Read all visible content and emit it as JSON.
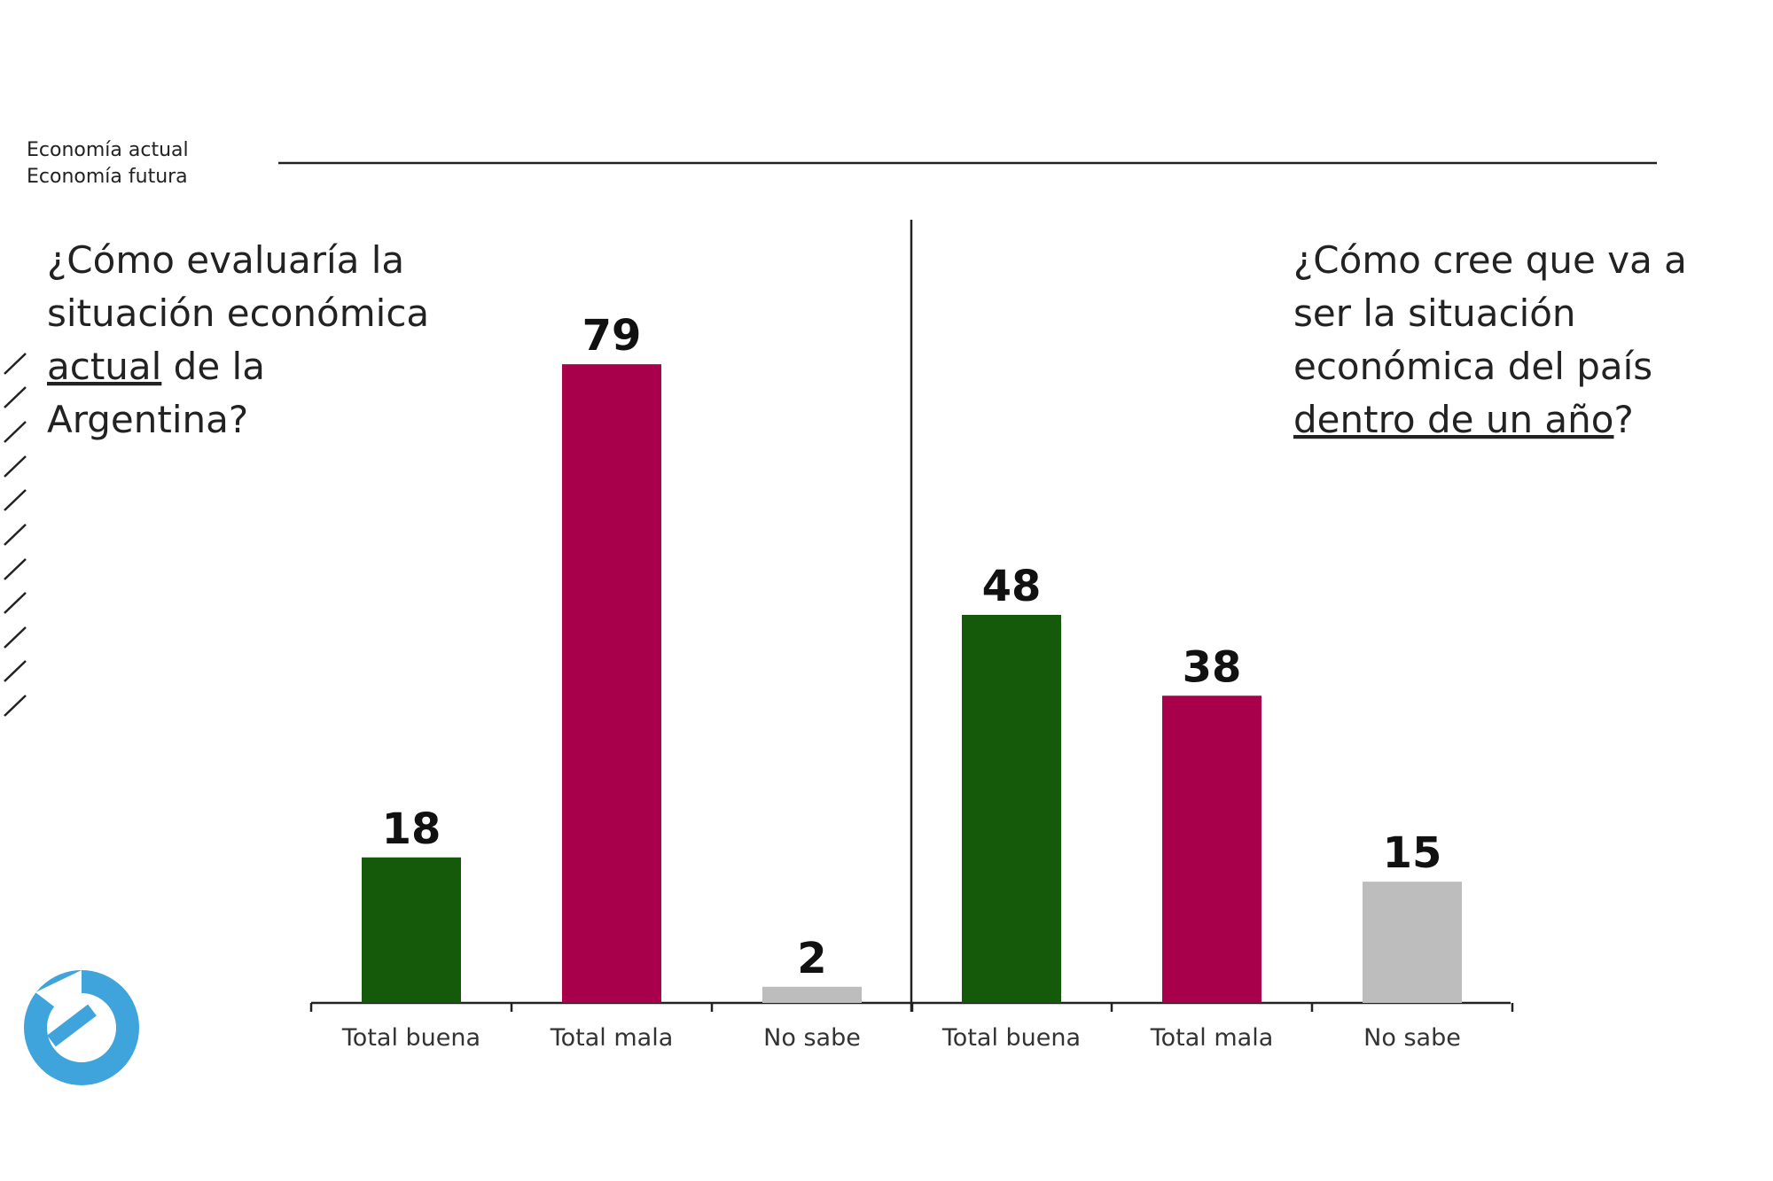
{
  "header": {
    "labels": [
      "Economía actual",
      "Economía futura"
    ]
  },
  "chart_data": [
    {
      "type": "bar",
      "title": [
        [
          {
            "text": "¿Cómo evaluaría la",
            "underline": false
          }
        ],
        [
          {
            "text": "situación económica",
            "underline": false
          }
        ],
        [
          {
            "text": "actual",
            "underline": true
          },
          {
            "text": " de la",
            "underline": false
          }
        ],
        [
          {
            "text": "Argentina?",
            "underline": false
          }
        ]
      ],
      "categories": [
        "Total buena",
        "Total mala",
        "No sabe"
      ],
      "values": [
        18,
        79,
        2
      ],
      "colors": [
        "#145a0a",
        "#a8004a",
        "#bdbdbd"
      ],
      "ylim": [
        0,
        80
      ]
    },
    {
      "type": "bar",
      "title": [
        [
          {
            "text": "¿Cómo cree que va a",
            "underline": false
          }
        ],
        [
          {
            "text": "ser la situación",
            "underline": false
          }
        ],
        [
          {
            "text": "económica del país",
            "underline": false
          }
        ],
        [
          {
            "text": "dentro de un año",
            "underline": true
          },
          {
            "text": "?",
            "underline": false
          }
        ]
      ],
      "categories": [
        "Total buena",
        "Total mala",
        "No sabe"
      ],
      "values": [
        48,
        38,
        15
      ],
      "colors": [
        "#145a0a",
        "#a8004a",
        "#bdbdbd"
      ],
      "ylim": [
        0,
        80
      ]
    }
  ]
}
